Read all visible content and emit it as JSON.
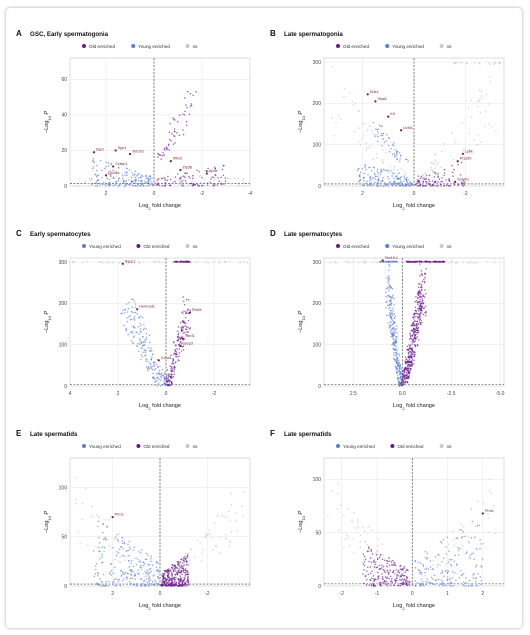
{
  "colors": {
    "old_enriched": "#6a1b8a",
    "young_enriched": "#5b7fd6",
    "ns": "#c8c8c8",
    "label_text": "#7a1b2b",
    "grid": "#e6e6e6"
  },
  "chart_data": [
    {
      "type": "scatter",
      "panel": "A",
      "title": "GSC, Early spermatogonia",
      "legend": [
        {
          "name": "Old enriched",
          "key": "old_enriched"
        },
        {
          "name": "Young enriched",
          "key": "young_enriched"
        },
        {
          "name": "ns",
          "key": "ns"
        }
      ],
      "legend_placement": "top",
      "xlabel": "Log2 fold change",
      "ylabel": "-Log10 P",
      "xlim": [
        3.5,
        -4
      ],
      "ylim": [
        0,
        72
      ],
      "xticks": [
        2,
        0,
        -2,
        -4
      ],
      "yticks": [
        0,
        20,
        40,
        60
      ],
      "hline": 1.3,
      "vline": 0,
      "clusters": [
        {
          "series": "ns",
          "n": 70,
          "x": [
            -4,
            3.4
          ],
          "y": [
            0,
            6
          ],
          "seed": 11
        },
        {
          "series": "young_enriched",
          "n": 160,
          "x": [
            0.05,
            2.6
          ],
          "y": [
            0,
            16
          ],
          "seed": 12,
          "shape": "fan"
        },
        {
          "series": "old_enriched",
          "n": 90,
          "x": [
            -3.0,
            -0.05
          ],
          "y": [
            0,
            12
          ],
          "seed": 13,
          "shape": "fan"
        },
        {
          "series": "old_enriched",
          "n": 55,
          "x": [
            -1.9,
            -0.3
          ],
          "y": [
            15,
            68
          ],
          "seed": 14,
          "shape": "arm"
        },
        {
          "series": "ns",
          "n": 25,
          "x": [
            -0.2,
            0.2
          ],
          "y": [
            0,
            3
          ],
          "seed": 15
        }
      ],
      "labeled_points": [
        {
          "x": 2.5,
          "y": 19,
          "text": "Dazl"
        },
        {
          "x": 1.6,
          "y": 20,
          "text": "Spp1"
        },
        {
          "x": 1.0,
          "y": 18,
          "text": "Tex101"
        },
        {
          "x": 1.7,
          "y": 11,
          "text": "Crabp1"
        },
        {
          "x": -0.7,
          "y": 14,
          "text": "Ifitm3"
        },
        {
          "x": -1.1,
          "y": 9,
          "text": "Zfp36"
        },
        {
          "x": -2.2,
          "y": 7,
          "text": "Apoe"
        },
        {
          "x": 2.0,
          "y": 6,
          "text": "Lin28a"
        }
      ]
    },
    {
      "type": "scatter",
      "panel": "B",
      "title": "Late spermatogonia",
      "legend": [
        {
          "name": "Old enriched",
          "key": "old_enriched"
        },
        {
          "name": "Young enriched",
          "key": "young_enriched"
        },
        {
          "name": "ns",
          "key": "ns"
        }
      ],
      "legend_placement": "top",
      "xlabel": "Log2 fold change",
      "ylabel": "-Log10 P",
      "xlim": [
        3.5,
        -3.5
      ],
      "ylim": [
        0,
        310
      ],
      "xticks": [
        2,
        0,
        -2
      ],
      "yticks": [
        0,
        100,
        200,
        300
      ],
      "hline": 5,
      "vline": 0,
      "clusters": [
        {
          "series": "young_enriched",
          "n": 170,
          "x": [
            0.05,
            2.2
          ],
          "y": [
            0,
            60
          ],
          "seed": 21,
          "shape": "fan"
        },
        {
          "series": "young_enriched",
          "n": 50,
          "x": [
            0.4,
            1.6
          ],
          "y": [
            60,
            160
          ],
          "seed": 22,
          "shape": "arm"
        },
        {
          "series": "old_enriched",
          "n": 100,
          "x": [
            -2.0,
            -0.05
          ],
          "y": [
            0,
            60
          ],
          "seed": 23,
          "shape": "fan"
        },
        {
          "series": "ns",
          "n": 130,
          "x": [
            -3.2,
            3.2
          ],
          "y": [
            0,
            300
          ],
          "seed": 24,
          "shape": "vee"
        },
        {
          "series": "ns",
          "n": 20,
          "x": [
            -3.4,
            -1.5
          ],
          "y": [
            295,
            300
          ],
          "seed": 25
        }
      ],
      "labeled_points": [
        {
          "x": 1.8,
          "y": 222,
          "text": "Ddx4"
        },
        {
          "x": 1.5,
          "y": 205,
          "text": "Stra8"
        },
        {
          "x": 1.0,
          "y": 168,
          "text": "Kit"
        },
        {
          "x": 0.5,
          "y": 135,
          "text": "Uchl1"
        },
        {
          "x": -1.9,
          "y": 78,
          "text": "Ly6k"
        },
        {
          "x": -1.7,
          "y": 60,
          "text": "Prss50"
        },
        {
          "x": -1.6,
          "y": 10,
          "text": "Sohlh1"
        }
      ]
    },
    {
      "type": "scatter",
      "panel": "C",
      "title": "Early spermatocytes",
      "legend": [
        {
          "name": "Young enriched",
          "key": "young_enriched"
        },
        {
          "name": "Old enriched",
          "key": "old_enriched"
        },
        {
          "name": "ns",
          "key": "ns"
        }
      ],
      "legend_placement": "top",
      "xlabel": "Log2 fold change",
      "ylabel": "-Log10 P",
      "xlim": [
        4,
        -3.5
      ],
      "ylim": [
        0,
        310
      ],
      "xticks": [
        4,
        2,
        0,
        -2
      ],
      "yticks": [
        0,
        100,
        200,
        300
      ],
      "hline": 3,
      "vline": 0,
      "clusters": [
        {
          "series": "young_enriched",
          "n": 190,
          "x": [
            0.05,
            1.8
          ],
          "y": [
            0,
            230
          ],
          "seed": 31,
          "shape": "arm"
        },
        {
          "series": "old_enriched",
          "n": 170,
          "x": [
            -1.0,
            -0.05
          ],
          "y": [
            0,
            230
          ],
          "seed": 32,
          "shape": "arm"
        },
        {
          "series": "old_enriched",
          "n": 60,
          "x": [
            -1.0,
            -0.3
          ],
          "y": [
            300,
            302
          ],
          "seed": 33
        },
        {
          "series": "ns",
          "n": 50,
          "x": [
            -3.4,
            3.9
          ],
          "y": [
            298,
            302
          ],
          "seed": 34
        }
      ],
      "labeled_points": [
        {
          "x": 1.8,
          "y": 296,
          "text": "Sycp1"
        },
        {
          "x": 1.2,
          "y": 186,
          "text": "Hormad1"
        },
        {
          "x": -1.0,
          "y": 178,
          "text": "Piwil1"
        },
        {
          "x": -0.7,
          "y": 115,
          "text": "Tdrd1"
        },
        {
          "x": -0.6,
          "y": 97,
          "text": "Sycp3"
        },
        {
          "x": 0.3,
          "y": 62,
          "text": "Ccna1"
        }
      ]
    },
    {
      "type": "scatter",
      "panel": "D",
      "title": "Late spermatocytes",
      "legend": [
        {
          "name": "Old enriched",
          "key": "old_enriched"
        },
        {
          "name": "Young enriched",
          "key": "young_enriched"
        },
        {
          "name": "ns",
          "key": "ns"
        }
      ],
      "legend_placement": "top",
      "xlabel": "Log2 fold change",
      "ylabel": "-Log10 P",
      "xlim": [
        4,
        -5.2
      ],
      "ylim": [
        0,
        310
      ],
      "xticks": [
        2.5,
        0,
        -2.5,
        -5
      ],
      "xticklabels": [
        "2.5",
        "0.0",
        "-2.5",
        "-5.0"
      ],
      "yticks": [
        0,
        100,
        200,
        300
      ],
      "hline": 3,
      "vline": 0,
      "clusters": [
        {
          "series": "young_enriched",
          "n": 260,
          "x": [
            0.05,
            0.8
          ],
          "y": [
            0,
            300
          ],
          "seed": 41,
          "shape": "arm"
        },
        {
          "series": "old_enriched",
          "n": 420,
          "x": [
            -1.2,
            -0.05
          ],
          "y": [
            0,
            300
          ],
          "seed": 42,
          "shape": "arm"
        },
        {
          "series": "old_enriched",
          "n": 120,
          "x": [
            -2.2,
            -0.2
          ],
          "y": [
            300,
            302
          ],
          "seed": 43
        },
        {
          "series": "young_enriched",
          "n": 40,
          "x": [
            0.2,
            1.2
          ],
          "y": [
            300,
            302
          ],
          "seed": 44
        },
        {
          "series": "ns",
          "n": 40,
          "x": [
            -5.0,
            3.8
          ],
          "y": [
            298,
            302
          ],
          "seed": 45
        }
      ],
      "labeled_points": [
        {
          "x": 1.0,
          "y": 304,
          "text": "Tex19.1"
        }
      ]
    },
    {
      "type": "scatter",
      "panel": "E",
      "title": "Late spermatids",
      "legend": [
        {
          "name": "Young enriched",
          "key": "young_enriched"
        },
        {
          "name": "Old enriched",
          "key": "old_enriched"
        },
        {
          "name": "ns",
          "key": "ns"
        }
      ],
      "legend_placement": "top",
      "xlabel": "Log2 fold change",
      "ylabel": "-Log10 P",
      "xlim": [
        3.8,
        -3.8
      ],
      "ylim": [
        0,
        130
      ],
      "xticks": [
        2,
        0,
        -2
      ],
      "yticks": [
        0,
        50,
        100
      ],
      "hline": 2,
      "vline": 0,
      "clusters": [
        {
          "series": "young_enriched",
          "n": 220,
          "x": [
            0.05,
            2.8
          ],
          "y": [
            0,
            70
          ],
          "seed": 51,
          "shape": "fan"
        },
        {
          "series": "old_enriched",
          "n": 320,
          "x": [
            -1.2,
            -0.05
          ],
          "y": [
            0,
            35
          ],
          "seed": 52,
          "shape": "fan"
        },
        {
          "series": "ns",
          "n": 120,
          "x": [
            -3.6,
            3.6
          ],
          "y": [
            0,
            115
          ],
          "seed": 53,
          "shape": "vee"
        }
      ],
      "labeled_points": [
        {
          "x": 2.0,
          "y": 70,
          "text": "Prm1"
        }
      ]
    },
    {
      "type": "scatter",
      "panel": "F",
      "title": "Late spermatids",
      "legend": [
        {
          "name": "Young enriched",
          "key": "young_enriched"
        },
        {
          "name": "Old enriched",
          "key": "old_enriched"
        },
        {
          "name": "ns",
          "key": "ns"
        }
      ],
      "legend_placement": "top",
      "xlabel": "Log2 fold change",
      "ylabel": "-Log10 P",
      "xlim": [
        -2.5,
        2.6
      ],
      "ylim": [
        0,
        120
      ],
      "xticks": [
        -2,
        -1,
        0,
        1,
        2
      ],
      "yticks": [
        0,
        50,
        100
      ],
      "hline": 2,
      "vline": 0,
      "clusters": [
        {
          "series": "old_enriched",
          "n": 200,
          "x": [
            -1.4,
            -0.05
          ],
          "y": [
            0,
            40
          ],
          "seed": 61,
          "shape": "fan"
        },
        {
          "series": "young_enriched",
          "n": 170,
          "x": [
            0.05,
            2.0
          ],
          "y": [
            0,
            70
          ],
          "seed": 62,
          "shape": "fan"
        },
        {
          "series": "ns",
          "n": 110,
          "x": [
            -2.4,
            2.4
          ],
          "y": [
            0,
            110
          ],
          "seed": 63,
          "shape": "vee"
        }
      ],
      "labeled_points": [
        {
          "x": 2.0,
          "y": 68,
          "text": "Prm1"
        }
      ]
    }
  ]
}
